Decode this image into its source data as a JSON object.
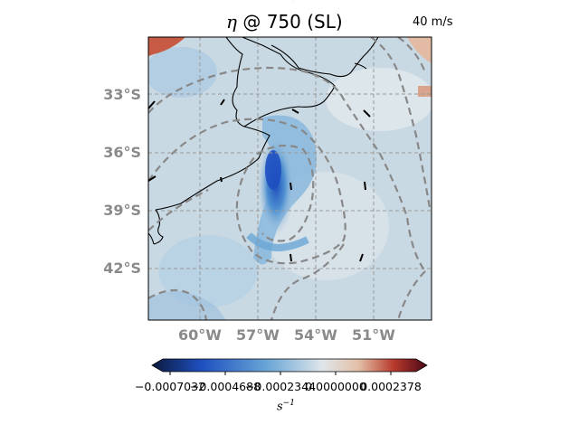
{
  "title": {
    "symbol": "η",
    "rest": " @ 750 (SL)"
  },
  "quiver_key": {
    "label": "40 m/s",
    "icon": "arrow-right-icon"
  },
  "map": {
    "lat_labels": [
      "33°S",
      "36°S",
      "39°S",
      "42°S"
    ],
    "lon_labels": [
      "60°W",
      "57°W",
      "54°W",
      "51°W"
    ],
    "extent": {
      "lon": [
        -62.7,
        -48.2
      ],
      "lat": [
        -30.2,
        -44.7
      ]
    },
    "gridlines": true
  },
  "colorbar": {
    "ticks": [
      "−0.0007032",
      "−0.0004688",
      "−0.0002344",
      "0.0000000",
      "0.0002378"
    ],
    "tick_labels_rendered": [
      "−0.0007032",
      "−0.0004688",
      "−0.0002344",
      "0.0000000",
      "0.0002378"
    ],
    "unit": "s",
    "unit_exp": "−1",
    "colormap": [
      "#0a1a3c",
      "#1f4fc0",
      "#5fa0d6",
      "#dfe6ea",
      "#e8c9b4",
      "#c24a34",
      "#5a0a1e"
    ],
    "extend": "both"
  },
  "colors": {
    "land_line": "#000000",
    "contour": "#888888",
    "grid": "#9a9a9a",
    "background_field": "#c8d8e2"
  }
}
